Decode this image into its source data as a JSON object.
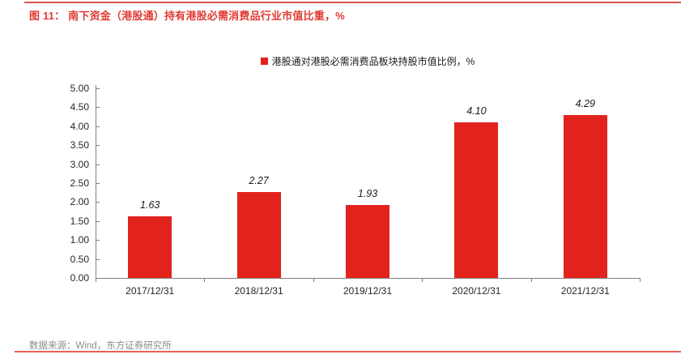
{
  "header": {
    "title": "图 11： 南下资金（港股通）持有港股必需消费品行业市值比重，%"
  },
  "chart_data": {
    "type": "bar",
    "title": "图 11： 南下资金（港股通）持有港股必需消费品行业市值比重，%",
    "legend": [
      "港股通对港股必需消费品板块持股市值比例，%"
    ],
    "legend_position": "top-center",
    "categories": [
      "2017/12/31",
      "2018/12/31",
      "2019/12/31",
      "2020/12/31",
      "2021/12/31"
    ],
    "values": [
      1.63,
      2.27,
      1.93,
      4.1,
      4.29
    ],
    "value_labels": [
      "1.63",
      "2.27",
      "1.93",
      "4.10",
      "4.29"
    ],
    "xlabel": "",
    "ylabel": "",
    "ylim": [
      0,
      5
    ],
    "ytick_step": 0.5,
    "ytick_labels": [
      "0.00",
      "0.50",
      "1.00",
      "1.50",
      "2.00",
      "2.50",
      "3.00",
      "3.50",
      "4.00",
      "4.50",
      "5.00"
    ],
    "grid": false,
    "bar_color": "#e2231d"
  },
  "footer": {
    "source": "数据来源：Wind，东方证券研究所"
  },
  "colors": {
    "title_red": "#e03b33",
    "bar_red": "#e2231d",
    "top_divider": "#d7564e",
    "bottom_divider": "#e4635a",
    "axis_gray": "#808080",
    "label_dark": "#262626",
    "footer_gray": "#8c8c8c"
  }
}
